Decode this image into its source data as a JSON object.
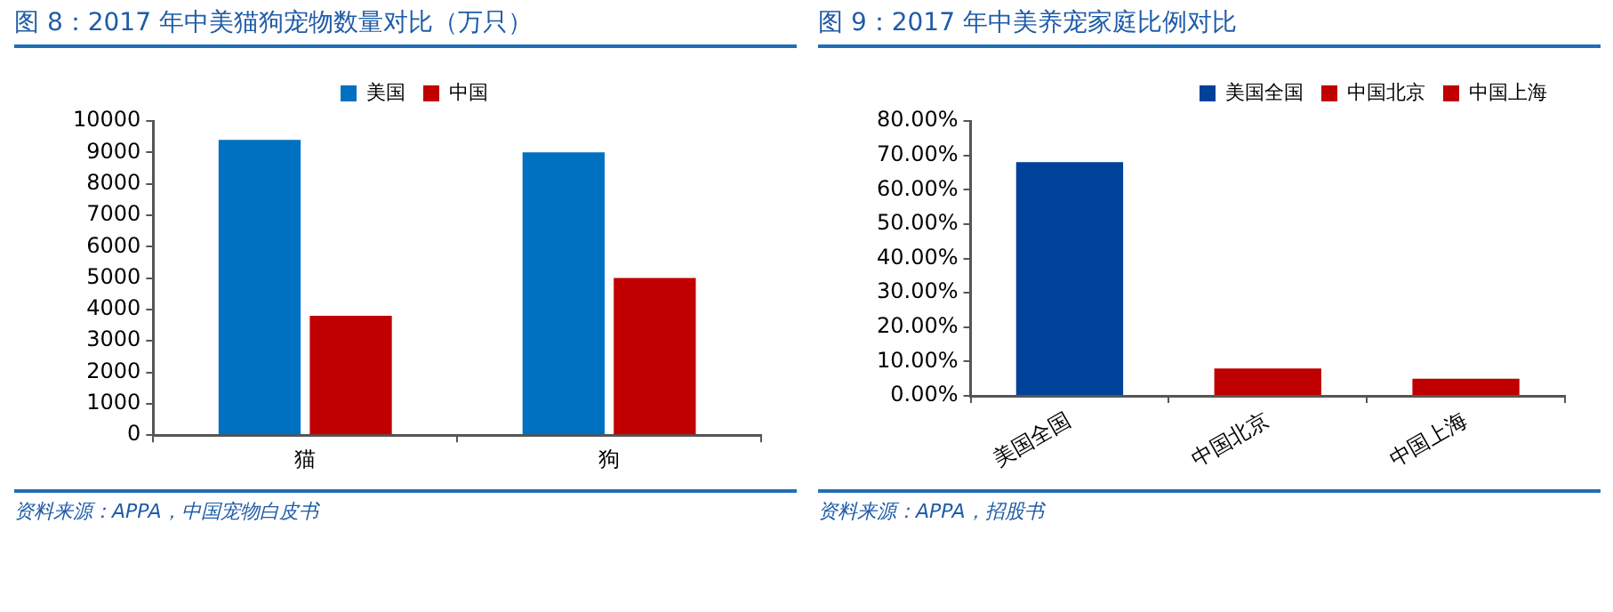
{
  "chart_data": [
    {
      "type": "bar",
      "title": "图 8：2017 年中美猫狗宠物数量对比（万只）",
      "categories": [
        "猫",
        "狗"
      ],
      "series": [
        {
          "name": "美国",
          "color": "#0070c0",
          "values": [
            9400,
            9000
          ]
        },
        {
          "name": "中国",
          "color": "#c00000",
          "values": [
            3800,
            5000
          ]
        }
      ],
      "ylim": [
        0,
        10000
      ],
      "yticks": [
        0,
        1000,
        2000,
        3000,
        4000,
        5000,
        6000,
        7000,
        8000,
        9000,
        10000
      ],
      "legend": "top",
      "grid": false,
      "annotations": [
        "资料来源：APPA，中国宠物白皮书"
      ]
    },
    {
      "type": "bar",
      "title": "图 9：2017 年中美养宠家庭比例对比",
      "categories": [
        "美国全国",
        "中国北京",
        "中国上海"
      ],
      "series": [
        {
          "name": "美国全国",
          "color": "#00419a",
          "values": [
            68,
            null,
            null
          ]
        },
        {
          "name": "中国北京",
          "color": "#c00000",
          "values": [
            null,
            8,
            null
          ]
        },
        {
          "name": "中国上海",
          "color": "#c00000",
          "values": [
            null,
            null,
            5
          ]
        }
      ],
      "ylim": [
        0,
        80
      ],
      "yticks": [
        {
          "value": 0,
          "label": "0.00%"
        },
        {
          "value": 10,
          "label": "10.00%"
        },
        {
          "value": 20,
          "label": "20.00%"
        },
        {
          "value": 30,
          "label": "30.00%"
        },
        {
          "value": 40,
          "label": "40.00%"
        },
        {
          "value": 50,
          "label": "50.00%"
        },
        {
          "value": 60,
          "label": "60.00%"
        },
        {
          "value": 70,
          "label": "70.00%"
        },
        {
          "value": 80,
          "label": "80.00%"
        }
      ],
      "legend": "top right",
      "grid": false,
      "annotations": [
        "资料来源：APPA，招股书"
      ]
    }
  ]
}
